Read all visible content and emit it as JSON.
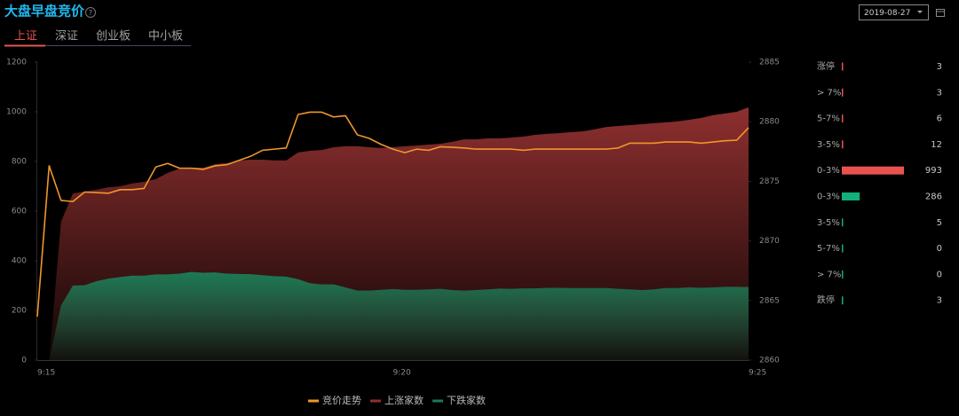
{
  "header": {
    "title": "大盘早盘竞价",
    "help": "?",
    "tabs": [
      "上证",
      "深证",
      "创业板",
      "中小板"
    ],
    "active_tab": 0,
    "date": "2019-08-27"
  },
  "chart_data": {
    "type": "combo",
    "categories": [
      "9:15",
      null,
      null,
      null,
      null,
      null,
      null,
      null,
      null,
      null,
      null,
      null,
      null,
      null,
      null,
      null,
      null,
      null,
      null,
      null,
      null,
      null,
      null,
      null,
      null,
      null,
      null,
      null,
      null,
      null,
      "9:20",
      null,
      null,
      null,
      null,
      null,
      null,
      null,
      null,
      null,
      null,
      null,
      null,
      null,
      null,
      null,
      null,
      null,
      null,
      null,
      null,
      null,
      null,
      null,
      null,
      null,
      null,
      null,
      null,
      null,
      "9:25"
    ],
    "ylim": [
      0,
      1200
    ],
    "yticks": [
      0,
      200,
      400,
      600,
      800,
      1000,
      1200
    ],
    "y2lim": [
      2860,
      2885
    ],
    "y2ticks": [
      2860,
      2865,
      2870,
      2875,
      2880,
      2885
    ],
    "grid": false,
    "legend": "bottom",
    "series": [
      {
        "name": "竞价走势",
        "type": "line",
        "axis": "y2",
        "color": "#f0962a",
        "values": [
          2863.65,
          2876.3,
          2873.4,
          2873.3,
          2874.1,
          2874.05,
          2874.0,
          2874.3,
          2874.3,
          2874.4,
          2876.2,
          2876.5,
          2876.1,
          2876.1,
          2876.0,
          2876.3,
          2876.4,
          2876.75,
          2877.1,
          2877.6,
          2877.7,
          2877.8,
          2880.6,
          2880.8,
          2880.8,
          2880.4,
          2880.5,
          2878.9,
          2878.6,
          2878.1,
          2877.7,
          2877.4,
          2877.7,
          2877.6,
          2877.9,
          2877.85,
          2877.8,
          2877.7,
          2877.7,
          2877.7,
          2877.7,
          2877.6,
          2877.7,
          2877.7,
          2877.7,
          2877.7,
          2877.7,
          2877.7,
          2877.7,
          2877.8,
          2878.2,
          2878.2,
          2878.2,
          2878.3,
          2878.3,
          2878.3,
          2878.2,
          2878.3,
          2878.4,
          2878.45,
          2879.5
        ]
      },
      {
        "name": "上涨家数",
        "type": "area",
        "color": "#8e2f2f",
        "values": [
          0,
          0,
          557,
          671,
          679,
          686,
          696,
          700,
          711,
          718,
          729,
          754,
          771,
          775,
          775,
          789,
          793,
          804,
          807,
          807,
          804,
          804,
          836,
          843,
          846,
          857,
          861,
          861,
          857,
          854,
          857,
          861,
          864,
          868,
          871,
          879,
          889,
          889,
          893,
          893,
          896,
          900,
          907,
          911,
          914,
          918,
          921,
          929,
          939,
          943,
          946,
          950,
          954,
          957,
          961,
          968,
          975,
          986,
          993,
          1000,
          1018
        ]
      },
      {
        "name": "下跌家数",
        "type": "area",
        "color": "#1c7a55",
        "values": [
          0,
          0,
          220,
          300,
          302,
          318,
          328,
          335,
          340,
          340,
          345,
          345,
          348,
          355,
          352,
          353,
          348,
          347,
          346,
          342,
          338,
          336,
          326,
          310,
          305,
          305,
          293,
          280,
          280,
          283,
          286,
          283,
          283,
          285,
          287,
          282,
          280,
          282,
          285,
          288,
          287,
          289,
          289,
          291,
          291,
          290,
          290,
          290,
          290,
          287,
          285,
          282,
          285,
          290,
          290,
          293,
          291,
          293,
          295,
          295,
          294
        ]
      }
    ]
  },
  "side_panel": {
    "rows": [
      {
        "label": "涨停",
        "value": 3,
        "color": "#e8534f"
      },
      {
        "label": "> 7%",
        "value": 3,
        "color": "#e8534f"
      },
      {
        "label": "5-7%",
        "value": 6,
        "color": "#e8534f"
      },
      {
        "label": "3-5%",
        "value": 12,
        "color": "#e8534f"
      },
      {
        "label": "0-3%",
        "value": 993,
        "color": "#e8534f"
      },
      {
        "label": "0-3%",
        "value": 286,
        "color": "#12b07a"
      },
      {
        "label": "3-5%",
        "value": 5,
        "color": "#12b07a"
      },
      {
        "label": "5-7%",
        "value": 0,
        "color": "#12b07a"
      },
      {
        "label": "> 7%",
        "value": 0,
        "color": "#12b07a"
      },
      {
        "label": "跌停",
        "value": 3,
        "color": "#12b07a"
      }
    ]
  }
}
